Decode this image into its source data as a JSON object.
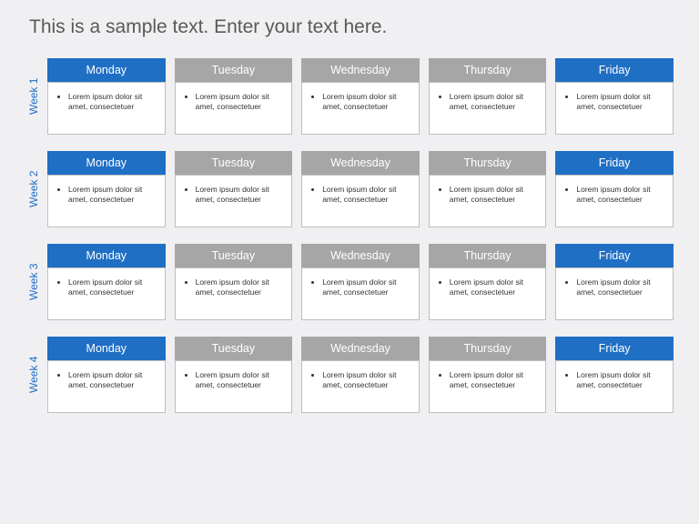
{
  "page": {
    "title": "This is a sample text. Enter your text here.",
    "background_color": "#f0f0f2",
    "title_color": "#595959",
    "title_fontsize": 21
  },
  "schedule": {
    "type": "table",
    "week_label_color": "#1f6fc4",
    "cell_border_color": "#bfbfbf",
    "cell_background": "#ffffff",
    "body_text_color": "#333333",
    "body_fontsize": 8.5,
    "header_fontsize": 12.5,
    "header_text_color": "#ffffff",
    "gap_between_days": 10,
    "gap_between_weeks": 18,
    "header_colors": {
      "highlighted": "#1f6fc4",
      "muted": "#a6a6a6"
    },
    "weeks": [
      {
        "label": "Week 1",
        "days": [
          {
            "name": "Monday",
            "header_color": "#1f6fc4",
            "content": "Lorem ipsum dolor sit amet, consectetuer"
          },
          {
            "name": "Tuesday",
            "header_color": "#a6a6a6",
            "content": "Lorem ipsum dolor sit amet, consectetuer"
          },
          {
            "name": "Wednesday",
            "header_color": "#a6a6a6",
            "content": "Lorem ipsum dolor sit amet, consectetuer"
          },
          {
            "name": "Thursday",
            "header_color": "#a6a6a6",
            "content": "Lorem ipsum dolor sit amet, consectetuer"
          },
          {
            "name": "Friday",
            "header_color": "#1f6fc4",
            "content": "Lorem ipsum dolor sit amet, consectetuer"
          }
        ]
      },
      {
        "label": "Week 2",
        "days": [
          {
            "name": "Monday",
            "header_color": "#1f6fc4",
            "content": "Lorem ipsum dolor sit amet, consectetuer"
          },
          {
            "name": "Tuesday",
            "header_color": "#a6a6a6",
            "content": "Lorem ipsum dolor sit amet, consectetuer"
          },
          {
            "name": "Wednesday",
            "header_color": "#a6a6a6",
            "content": "Lorem ipsum dolor sit amet, consectetuer"
          },
          {
            "name": "Thursday",
            "header_color": "#a6a6a6",
            "content": "Lorem ipsum dolor sit amet, consectetuer"
          },
          {
            "name": "Friday",
            "header_color": "#1f6fc4",
            "content": "Lorem ipsum dolor sit amet, consectetuer"
          }
        ]
      },
      {
        "label": "Week 3",
        "days": [
          {
            "name": "Monday",
            "header_color": "#1f6fc4",
            "content": "Lorem ipsum dolor sit amet, consectetuer"
          },
          {
            "name": "Tuesday",
            "header_color": "#a6a6a6",
            "content": "Lorem ipsum dolor sit amet, consectetuer"
          },
          {
            "name": "Wednesday",
            "header_color": "#a6a6a6",
            "content": "Lorem ipsum dolor sit amet, consectetuer"
          },
          {
            "name": "Thursday",
            "header_color": "#a6a6a6",
            "content": "Lorem ipsum dolor sit amet, consectetuer"
          },
          {
            "name": "Friday",
            "header_color": "#1f6fc4",
            "content": "Lorem ipsum dolor sit amet, consectetuer"
          }
        ]
      },
      {
        "label": "Week 4",
        "days": [
          {
            "name": "Monday",
            "header_color": "#1f6fc4",
            "content": "Lorem ipsum dolor sit amet, consectetuer"
          },
          {
            "name": "Tuesday",
            "header_color": "#a6a6a6",
            "content": "Lorem ipsum dolor sit amet, consectetuer"
          },
          {
            "name": "Wednesday",
            "header_color": "#a6a6a6",
            "content": "Lorem ipsum dolor sit amet, consectetuer"
          },
          {
            "name": "Thursday",
            "header_color": "#a6a6a6",
            "content": "Lorem ipsum dolor sit amet, consectetuer"
          },
          {
            "name": "Friday",
            "header_color": "#1f6fc4",
            "content": "Lorem ipsum dolor sit amet, consectetuer"
          }
        ]
      }
    ]
  }
}
